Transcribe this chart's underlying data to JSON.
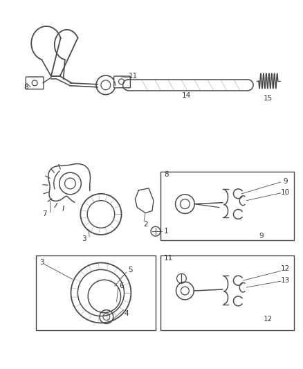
{
  "background_color": "#ffffff",
  "fig_width": 4.38,
  "fig_height": 5.33,
  "dpi": 100,
  "line_color": "#4a4a4a",
  "label_fontsize": 7.5
}
